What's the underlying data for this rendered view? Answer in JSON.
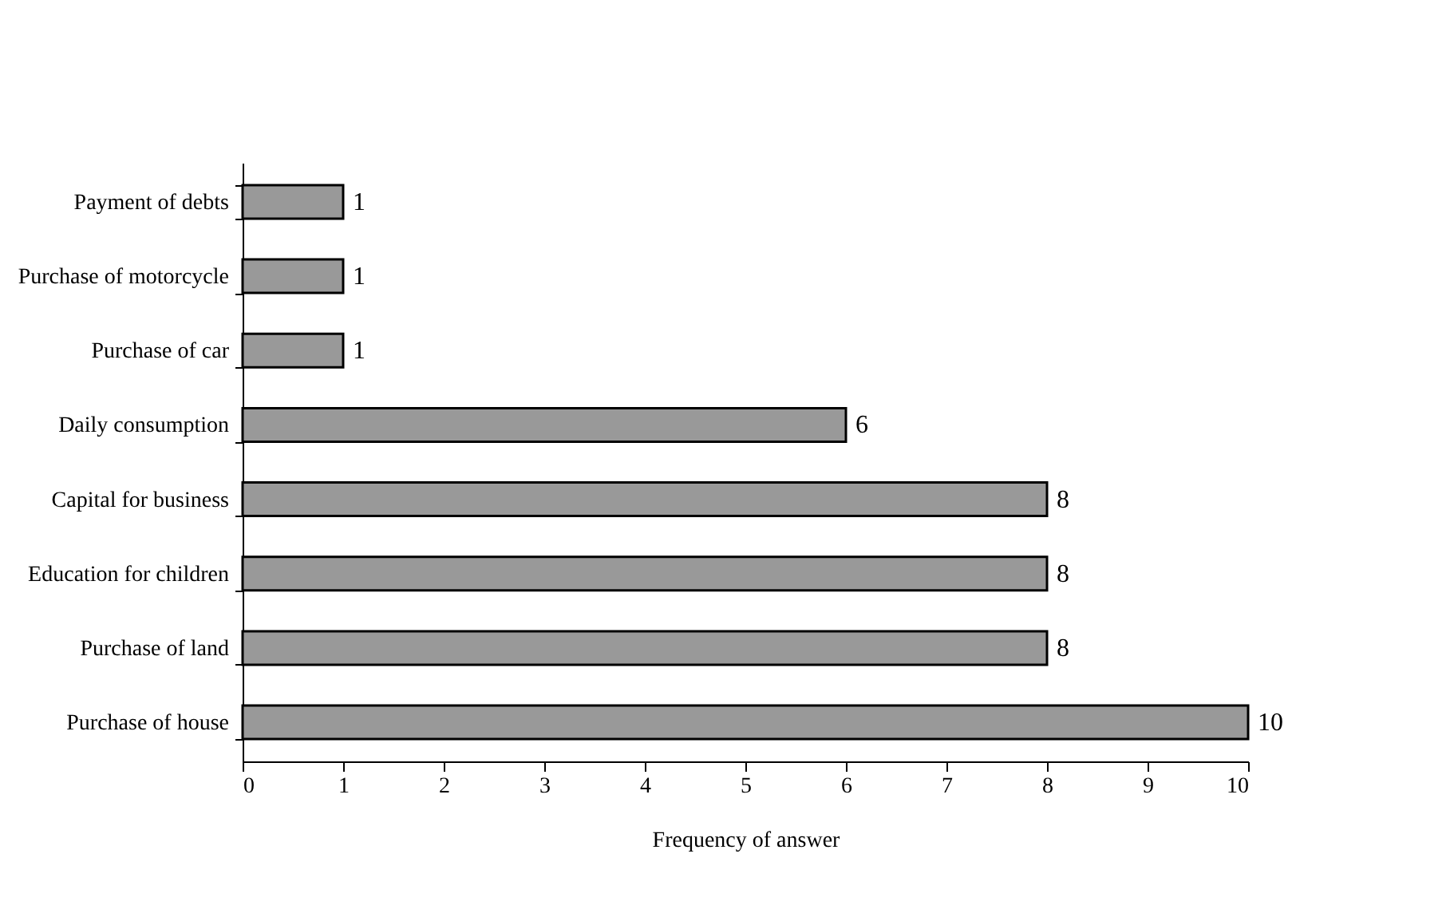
{
  "chart_data": {
    "type": "bar",
    "orientation": "horizontal",
    "xlabel": "Frequency of answer",
    "categories": [
      "Payment of debts",
      "Purchase of motorcycle",
      "Purchase of car",
      "Daily consumption",
      "Capital for business",
      "Education for children",
      "Purchase of land",
      "Purchase of house"
    ],
    "values": [
      1,
      1,
      1,
      6,
      8,
      8,
      8,
      10
    ],
    "color": "#999999",
    "xlim": [
      0,
      10
    ],
    "xticks": [
      0,
      1,
      2,
      3,
      4,
      5,
      6,
      7,
      8,
      9,
      10
    ],
    "grid": false,
    "data_labels": true
  }
}
